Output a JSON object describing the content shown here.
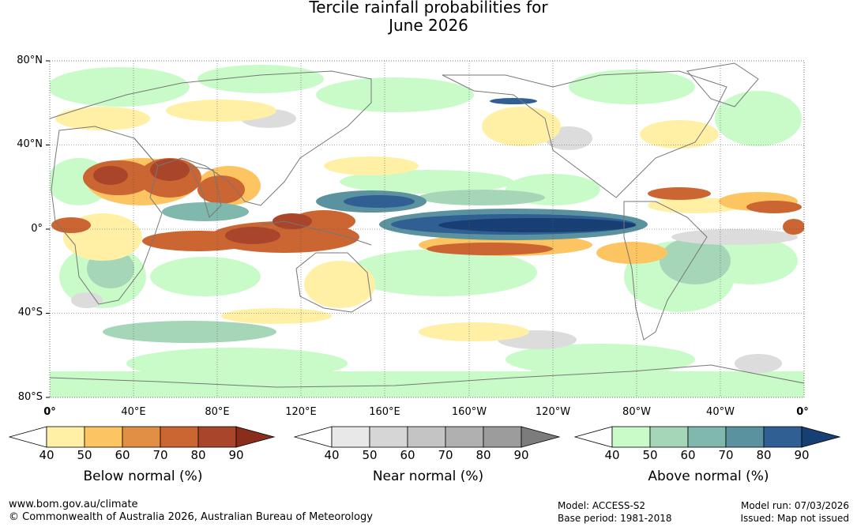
{
  "title_line1": "Tercile rainfall probabilities for",
  "title_line2": "June 2026",
  "lat_labels": [
    "80°N",
    "40°N",
    "0°",
    "40°S",
    "80°S"
  ],
  "lon_labels": [
    "0°",
    "40°E",
    "80°E",
    "120°E",
    "160°E",
    "160°W",
    "120°W",
    "80°W",
    "40°W",
    "0°"
  ],
  "legends": [
    {
      "title": "Below normal (%)",
      "ticks": [
        "40",
        "50",
        "60",
        "70",
        "80",
        "90"
      ],
      "colors": [
        "#fff0a6",
        "#fdc562",
        "#e08f44",
        "#cb6531",
        "#a8452a",
        "#8a2d1c"
      ]
    },
    {
      "title": "Near normal (%)",
      "ticks": [
        "40",
        "50",
        "60",
        "70",
        "80",
        "90"
      ],
      "colors": [
        "#e8e8e8",
        "#d6d6d6",
        "#c4c4c4",
        "#b0b0b0",
        "#9c9c9c",
        "#7c7c7c"
      ]
    },
    {
      "title": "Above normal (%)",
      "ticks": [
        "40",
        "50",
        "60",
        "70",
        "80",
        "90"
      ],
      "colors": [
        "#c9fbc9",
        "#a6d6b8",
        "#80b8ae",
        "#5a929f",
        "#305f94",
        "#173f73"
      ]
    }
  ],
  "footer": {
    "url": "www.bom.gov.au/climate",
    "copyright": "© Commonwealth of Australia 2026, Australian Bureau of Meteorology",
    "model": "Model: ACCESS-S2",
    "base_period": "Base period: 1981-2018",
    "model_run": "Model run: 07/03/2026",
    "issued": "Issued: Map not issued"
  }
}
